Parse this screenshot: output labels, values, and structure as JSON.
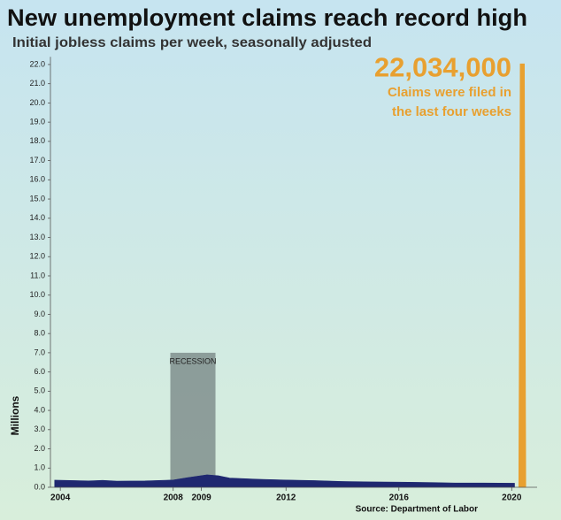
{
  "chart_data": {
    "type": "area",
    "title": "New unemployment claims reach record high",
    "subtitle": "Initial jobless claims per week, seasonally adjusted",
    "y_label": "Millions",
    "source": "Source: Department of Labor",
    "xlim": [
      2003.65,
      2020.9
    ],
    "xticks": [
      2004,
      2008,
      2009,
      2012,
      2016,
      2020
    ],
    "ylim": [
      0,
      22.4
    ],
    "yticks": [
      {
        "value": 0,
        "label": "0.0"
      },
      {
        "value": 1,
        "label": "1.0"
      },
      {
        "value": 2,
        "label": "2.0"
      },
      {
        "value": 3,
        "label": "3.0"
      },
      {
        "value": 4,
        "label": "4.0"
      },
      {
        "value": 5,
        "label": "5.0"
      },
      {
        "value": 6,
        "label": "6.0"
      },
      {
        "value": 7,
        "label": "7.0"
      },
      {
        "value": 8,
        "label": "8.0"
      },
      {
        "value": 9,
        "label": "9.0"
      },
      {
        "value": 10,
        "label": "10.0"
      },
      {
        "value": 11,
        "label": "11.0"
      },
      {
        "value": 12,
        "label": "12.0"
      },
      {
        "value": 13,
        "label": "13.0"
      },
      {
        "value": 14,
        "label": "14.0"
      },
      {
        "value": 15,
        "label": "15.0"
      },
      {
        "value": 16,
        "label": "16.0"
      },
      {
        "value": 17,
        "label": "17.0"
      },
      {
        "value": 18,
        "label": "18.0"
      },
      {
        "value": 19,
        "label": "19.0"
      },
      {
        "value": 20,
        "label": "20.0"
      },
      {
        "value": 21,
        "label": "21.0"
      },
      {
        "value": 22,
        "label": "22.0"
      }
    ],
    "series": [
      {
        "color": "#1f2870",
        "x": [
          2003.8,
          2004.5,
          2005,
          2005.5,
          2006,
          2007,
          2008,
          2008.5,
          2009.2,
          2009.6,
          2010,
          2011,
          2012,
          2013,
          2014,
          2015,
          2016,
          2017,
          2018,
          2019,
          2020.1
        ],
        "values": [
          0.37,
          0.35,
          0.33,
          0.36,
          0.32,
          0.33,
          0.38,
          0.5,
          0.65,
          0.6,
          0.48,
          0.42,
          0.38,
          0.35,
          0.3,
          0.28,
          0.27,
          0.25,
          0.22,
          0.22,
          0.21
        ]
      },
      {
        "color": "#e8a030",
        "x": [
          2020.25,
          2020.3,
          2020.45,
          2020.5
        ],
        "values": [
          0.21,
          22.034,
          22.034,
          0.21
        ]
      }
    ],
    "recession": {
      "label": "RECESSION",
      "xlim": [
        2007.9,
        2009.5
      ],
      "top": 7.0
    },
    "annotation": {
      "value": 22.034,
      "label": "22,034,000",
      "lines": [
        "Claims were filed in",
        "the last four weeks"
      ]
    }
  }
}
